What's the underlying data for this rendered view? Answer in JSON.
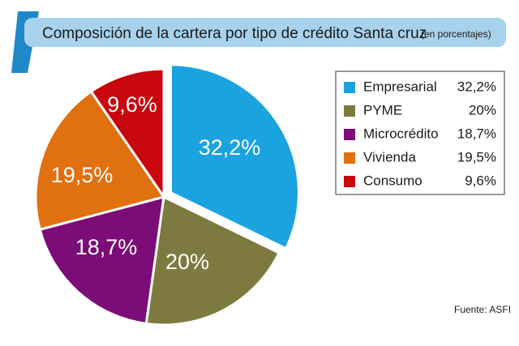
{
  "chart_data": {
    "type": "pie",
    "title": "Composición de la cartera por tipo de crédito Santa cruz",
    "subtitle": "(en porcentajes)",
    "categories": [
      "Empresarial",
      "PYME",
      "Microcrédito",
      "Vivienda",
      "Consumo"
    ],
    "values": [
      32.2,
      20,
      18.7,
      19.5,
      9.6
    ],
    "value_labels": [
      "32,2%",
      "20%",
      "18,7%",
      "19,5%",
      "9,6%"
    ],
    "colors": [
      "#1aa3df",
      "#7e7a3f",
      "#7b0c78",
      "#e07010",
      "#c8070e"
    ],
    "legend_position": "right",
    "exploded": "Empresarial"
  },
  "source": "Fuente: ASFI",
  "colors": {
    "title_band": "#a8d2ec",
    "title_accent": "#1e88c8",
    "slice_border": "#ffffff"
  }
}
